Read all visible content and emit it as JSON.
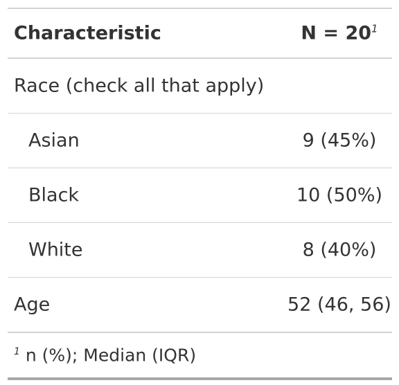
{
  "table": {
    "header": {
      "characteristic": "Characteristic",
      "n_label": "N = 20",
      "n_footnote_mark": "1"
    },
    "rows": [
      {
        "label": "Race (check all that apply)",
        "value": "",
        "indent": false
      },
      {
        "label": "Asian",
        "value": "9 (45%)",
        "indent": true
      },
      {
        "label": "Black",
        "value": "10 (50%)",
        "indent": true
      },
      {
        "label": "White",
        "value": "8 (40%)",
        "indent": true
      },
      {
        "label": "Age",
        "value": "52 (46, 56)",
        "indent": false
      }
    ],
    "footnote": {
      "mark": "1",
      "text": "n (%); Median (IQR)"
    }
  }
}
